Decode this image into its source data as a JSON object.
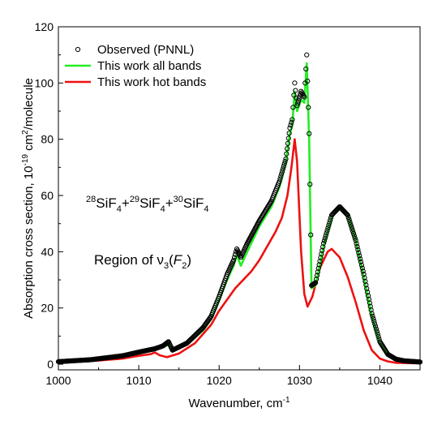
{
  "chart_data": {
    "type": "line",
    "xlabel": "Wavenumber, cm",
    "xlabel_sup": "-1",
    "ylabel": "Absorption cross section, 10",
    "ylabel_sup": "-19",
    "ylabel_rest": " cm",
    "ylabel_sup2": "2",
    "ylabel_tail": "/molecule",
    "xlim": [
      1000,
      1045
    ],
    "ylim": [
      -2,
      120
    ],
    "xticks": [
      1000,
      1010,
      1020,
      1030,
      1040
    ],
    "yticks": [
      0,
      20,
      40,
      60,
      80,
      100,
      120
    ],
    "grid": false,
    "legend_position": "top-left",
    "colors": {
      "observed": "#000000",
      "all_bands": "#22ee22",
      "hot_bands": "#ee1111"
    },
    "series": [
      {
        "name": "Observed (PNNL)",
        "style": "markers",
        "points": [
          [
            1000,
            0.9
          ],
          [
            1004,
            1.6
          ],
          [
            1008,
            3.0
          ],
          [
            1010,
            4.3
          ],
          [
            1012,
            5.5
          ],
          [
            1013,
            6.5
          ],
          [
            1013.7,
            8
          ],
          [
            1014.2,
            5.0
          ],
          [
            1016,
            7.5
          ],
          [
            1018,
            13
          ],
          [
            1019,
            17
          ],
          [
            1020,
            24
          ],
          [
            1021,
            32
          ],
          [
            1021.8,
            37
          ],
          [
            1022.2,
            41
          ],
          [
            1022.7,
            38
          ],
          [
            1023.5,
            43
          ],
          [
            1025,
            51
          ],
          [
            1026.5,
            58
          ],
          [
            1027.5,
            65
          ],
          [
            1028.3,
            73
          ],
          [
            1028.8,
            84
          ],
          [
            1029.1,
            87
          ],
          [
            1029.4,
            100
          ],
          [
            1029.7,
            92
          ],
          [
            1030.2,
            97
          ],
          [
            1030.6,
            95
          ],
          [
            1030.9,
            110
          ],
          [
            1031.2,
            82
          ],
          [
            1031.5,
            28
          ],
          [
            1032,
            29
          ],
          [
            1033,
            43
          ],
          [
            1034,
            53
          ],
          [
            1035,
            56
          ],
          [
            1036,
            53
          ],
          [
            1037,
            44
          ],
          [
            1038,
            32
          ],
          [
            1039,
            18
          ],
          [
            1040,
            8
          ],
          [
            1041,
            3.5
          ],
          [
            1042,
            1.8
          ],
          [
            1043,
            1.2
          ],
          [
            1045,
            0.8
          ]
        ]
      },
      {
        "name": "This work all bands",
        "style": "line",
        "points": [
          [
            1000,
            0.8
          ],
          [
            1004,
            1.4
          ],
          [
            1008,
            2.6
          ],
          [
            1010,
            3.8
          ],
          [
            1012,
            5.0
          ],
          [
            1013,
            6.0
          ],
          [
            1013.7,
            7.0
          ],
          [
            1014.2,
            4.5
          ],
          [
            1016,
            7
          ],
          [
            1018,
            12
          ],
          [
            1019,
            16
          ],
          [
            1020,
            23
          ],
          [
            1021,
            30
          ],
          [
            1021.8,
            35
          ],
          [
            1022.2,
            39
          ],
          [
            1022.7,
            35
          ],
          [
            1023.5,
            40
          ],
          [
            1025,
            49
          ],
          [
            1026.5,
            56
          ],
          [
            1027.5,
            63
          ],
          [
            1028.3,
            72
          ],
          [
            1028.8,
            82
          ],
          [
            1029.1,
            85
          ],
          [
            1029.4,
            97
          ],
          [
            1029.7,
            90
          ],
          [
            1030.2,
            94
          ],
          [
            1030.6,
            93
          ],
          [
            1030.9,
            107
          ],
          [
            1031.2,
            80
          ],
          [
            1031.5,
            27
          ],
          [
            1032,
            28
          ],
          [
            1033,
            42
          ],
          [
            1034,
            52
          ],
          [
            1035,
            56
          ],
          [
            1036,
            53
          ],
          [
            1037,
            44
          ],
          [
            1038,
            31
          ],
          [
            1039,
            17
          ],
          [
            1040,
            7.5
          ],
          [
            1041,
            3.2
          ],
          [
            1042,
            1.6
          ],
          [
            1043,
            1.0
          ],
          [
            1045,
            0.7
          ]
        ]
      },
      {
        "name": "This work hot bands",
        "style": "line",
        "points": [
          [
            1000,
            0.6
          ],
          [
            1004,
            1.1
          ],
          [
            1008,
            2.0
          ],
          [
            1010,
            3.0
          ],
          [
            1011.5,
            3.6
          ],
          [
            1012,
            4.2
          ],
          [
            1012.6,
            3.2
          ],
          [
            1013.5,
            2.5
          ],
          [
            1015,
            3.8
          ],
          [
            1017,
            7.5
          ],
          [
            1019,
            14
          ],
          [
            1020,
            19
          ],
          [
            1021,
            23
          ],
          [
            1022,
            27
          ],
          [
            1023,
            30
          ],
          [
            1024,
            33
          ],
          [
            1025,
            37
          ],
          [
            1026,
            42
          ],
          [
            1027,
            47
          ],
          [
            1027.8,
            52
          ],
          [
            1028.5,
            60
          ],
          [
            1029,
            70
          ],
          [
            1029.4,
            80
          ],
          [
            1029.7,
            72
          ],
          [
            1030.2,
            40
          ],
          [
            1030.6,
            25
          ],
          [
            1031,
            20.5
          ],
          [
            1031.6,
            24
          ],
          [
            1032.5,
            34
          ],
          [
            1033.5,
            40
          ],
          [
            1034,
            41
          ],
          [
            1035,
            38
          ],
          [
            1036,
            31
          ],
          [
            1037,
            22
          ],
          [
            1038,
            12
          ],
          [
            1039,
            5
          ],
          [
            1040,
            2
          ],
          [
            1041,
            1
          ],
          [
            1042,
            0.5
          ],
          [
            1045,
            0.3
          ]
        ]
      }
    ],
    "annotations": [
      {
        "id": "species",
        "parts": [
          {
            "t": "28",
            "kind": "sup"
          },
          {
            "t": "SiF",
            "kind": "base"
          },
          {
            "t": "4",
            "kind": "sub"
          },
          {
            "t": "+",
            "kind": "base"
          },
          {
            "t": "29",
            "kind": "sup"
          },
          {
            "t": "SiF",
            "kind": "base"
          },
          {
            "t": "4",
            "kind": "sub"
          },
          {
            "t": "+",
            "kind": "base"
          },
          {
            "t": "30",
            "kind": "sup"
          },
          {
            "t": "SiF",
            "kind": "base"
          },
          {
            "t": "4",
            "kind": "sub"
          }
        ]
      },
      {
        "id": "region",
        "parts": [
          {
            "t": "Region of ",
            "kind": "base"
          },
          {
            "t": "ν",
            "kind": "base"
          },
          {
            "t": "3",
            "kind": "sub"
          },
          {
            "t": "(",
            "kind": "base"
          },
          {
            "t": "F",
            "kind": "italic"
          },
          {
            "t": "2",
            "kind": "sub"
          },
          {
            "t": ")",
            "kind": "base"
          }
        ]
      }
    ]
  }
}
